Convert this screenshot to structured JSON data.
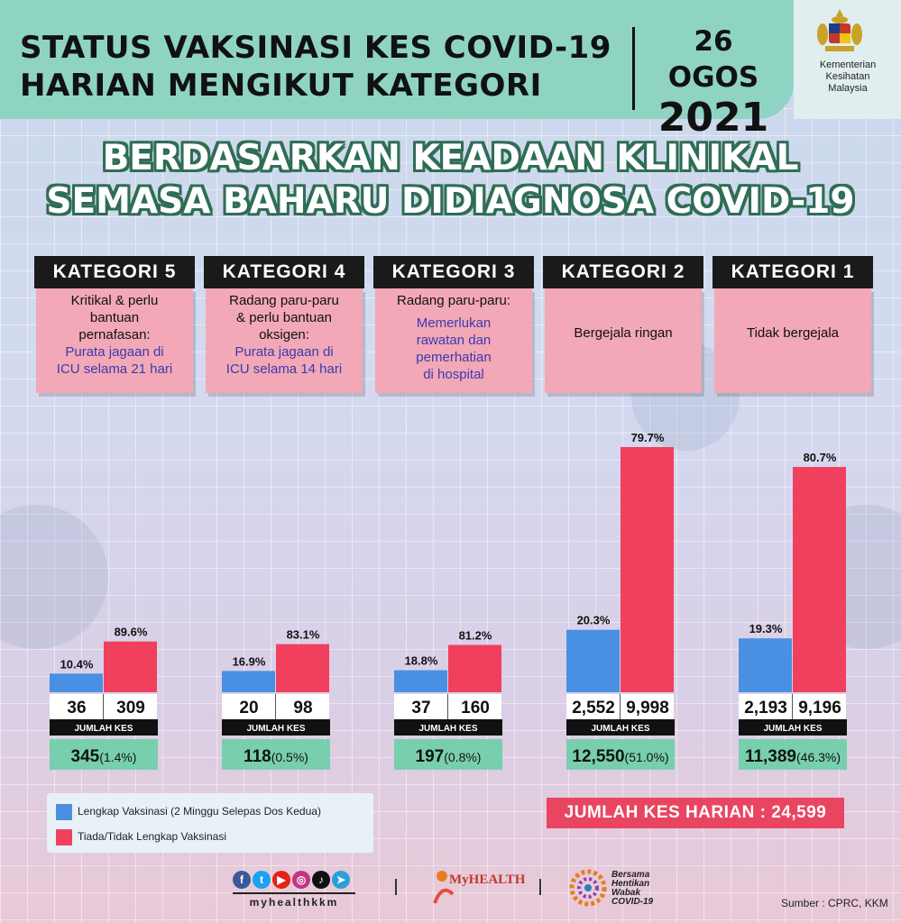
{
  "header": {
    "title": "STATUS VAKSINASI KES COVID-19\nHARIAN MENGIKUT KATEGORI",
    "date_line1": "26 OGOS",
    "date_line2": "2021",
    "ministry": "Kementerian\nKesihatan\nMalaysia"
  },
  "subtitle": "BERDASARKAN KEADAAN KLINIKAL\nSEMASA BAHARU DIDIAGNOSA COVID-19",
  "categories": [
    {
      "name": "KATEGORI 5",
      "desc": "Kritikal & perlu\nbantuan\npernafasan:",
      "note": "Purata jagaan di\nICU selama 21 hari"
    },
    {
      "name": "KATEGORI 4",
      "desc": "Radang paru-paru\n& perlu bantuan\noksigen:",
      "note": "Purata jagaan di\nICU selama 14 hari"
    },
    {
      "name": "KATEGORI 3",
      "desc": "Radang paru-paru:",
      "note": "Memerlukan\nrawatan dan\npemerhatian\ndi hospital"
    },
    {
      "name": "KATEGORI 2",
      "desc": "Bergejala ringan",
      "note": ""
    },
    {
      "name": "KATEGORI 1",
      "desc": "Tidak bergejala",
      "note": ""
    }
  ],
  "chart_data": {
    "type": "bar",
    "categories": [
      "KATEGORI 5",
      "KATEGORI 4",
      "KATEGORI 3",
      "KATEGORI 2",
      "KATEGORI 1"
    ],
    "series": [
      {
        "name": "Lengkap Vaksinasi (2 Minggu Selepas Dos Kedua)",
        "color": "#4a90e2",
        "percent": [
          10.4,
          16.9,
          18.8,
          20.3,
          19.3
        ],
        "percent_labels": [
          "10.4%",
          "16.9%",
          "18.8%",
          "20.3%",
          "19.3%"
        ],
        "counts": [
          "36",
          "20",
          "37",
          "2,552",
          "2,193"
        ]
      },
      {
        "name": "Tiada/Tidak Lengkap Vaksinasi",
        "color": "#f0405e",
        "percent": [
          89.6,
          83.1,
          81.2,
          79.7,
          80.7
        ],
        "percent_labels": [
          "89.6%",
          "83.1%",
          "81.2%",
          "79.7%",
          "80.7%"
        ],
        "counts": [
          "309",
          "98",
          "160",
          "9,998",
          "9,196"
        ]
      }
    ],
    "totals_label": "JUMLAH KES",
    "totals": [
      "345",
      "118",
      "197",
      "12,550",
      "11,389"
    ],
    "totals_share": [
      "(1.4%)",
      "(0.5%)",
      "(0.8%)",
      "(51.0%)",
      "(46.3%)"
    ],
    "bar_scale_values": [
      345,
      118,
      197,
      12550,
      11389
    ]
  },
  "legend": [
    {
      "label": "Lengkap Vaksinasi (2 Minggu Selepas Dos Kedua)",
      "color": "#4a90e2"
    },
    {
      "label": "Tiada/Tidak Lengkap Vaksinasi",
      "color": "#f0405e"
    }
  ],
  "total_daily": "JUMLAH KES HARIAN : 24,599",
  "footer": {
    "social_handle": "myhealthkkm",
    "myhealth": "MyHEALTH",
    "bersama": "Bersama\nHentikan\nWabak\nCOVID-19",
    "source": "Sumber : CPRC, KKM"
  },
  "colors": {
    "header": "#8fd4c3",
    "total_box": "#77cfae",
    "category_box": "#f2a8b6",
    "accent_red": "#e94560"
  }
}
